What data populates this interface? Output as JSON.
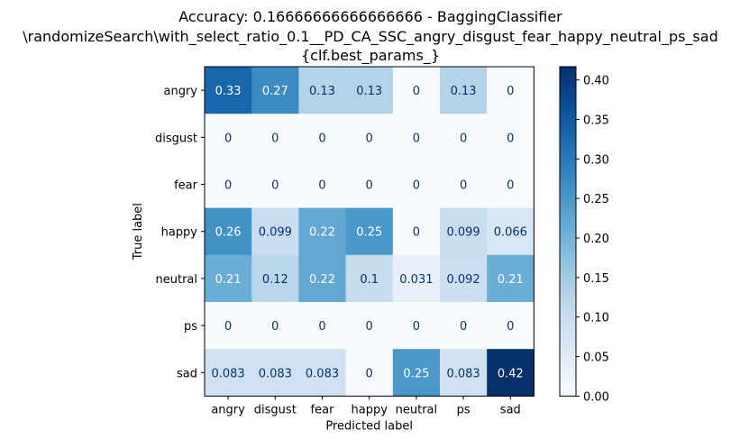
{
  "chart_data": {
    "type": "heatmap",
    "title_lines": [
      "Accuracy: 0.16666666666666666 - BaggingClassifier",
      "\\randomizeSearch\\with_select_ratio_0.1__PD_CA_SSC_angry_disgust_fear_happy_neutral_ps_sad",
      "{clf.best_params_}"
    ],
    "xlabel": "Predicted label",
    "ylabel": "True label",
    "x_categories": [
      "angry",
      "disgust",
      "fear",
      "happy",
      "neutral",
      "ps",
      "sad"
    ],
    "y_categories": [
      "angry",
      "disgust",
      "fear",
      "happy",
      "neutral",
      "ps",
      "sad"
    ],
    "values": [
      [
        0.33,
        0.27,
        0.13,
        0.13,
        0,
        0.13,
        0
      ],
      [
        0,
        0,
        0,
        0,
        0,
        0,
        0
      ],
      [
        0,
        0,
        0,
        0,
        0,
        0,
        0
      ],
      [
        0.26,
        0.099,
        0.22,
        0.25,
        0,
        0.099,
        0.066
      ],
      [
        0.21,
        0.12,
        0.22,
        0.1,
        0.031,
        0.092,
        0.21
      ],
      [
        0,
        0,
        0,
        0,
        0,
        0,
        0
      ],
      [
        0.083,
        0.083,
        0.083,
        0,
        0.25,
        0.083,
        0.42
      ]
    ],
    "value_labels": [
      [
        "0.33",
        "0.27",
        "0.13",
        "0.13",
        "0",
        "0.13",
        "0"
      ],
      [
        "0",
        "0",
        "0",
        "0",
        "0",
        "0",
        "0"
      ],
      [
        "0",
        "0",
        "0",
        "0",
        "0",
        "0",
        "0"
      ],
      [
        "0.26",
        "0.099",
        "0.22",
        "0.25",
        "0",
        "0.099",
        "0.066"
      ],
      [
        "0.21",
        "0.12",
        "0.22",
        "0.1",
        "0.031",
        "0.092",
        "0.21"
      ],
      [
        "0",
        "0",
        "0",
        "0",
        "0",
        "0",
        "0"
      ],
      [
        "0.083",
        "0.083",
        "0.083",
        "0",
        "0.25",
        "0.083",
        "0.42"
      ]
    ],
    "colorscale": "Blues",
    "vmin": 0,
    "vmax": 0.4167,
    "colorbar_ticks": [
      0.0,
      0.05,
      0.1,
      0.15,
      0.2,
      0.25,
      0.3,
      0.35,
      0.4
    ],
    "colorbar_tick_labels": [
      "0.00",
      "0.05",
      "0.10",
      "0.15",
      "0.20",
      "0.25",
      "0.30",
      "0.35",
      "0.40"
    ],
    "grid": false
  }
}
